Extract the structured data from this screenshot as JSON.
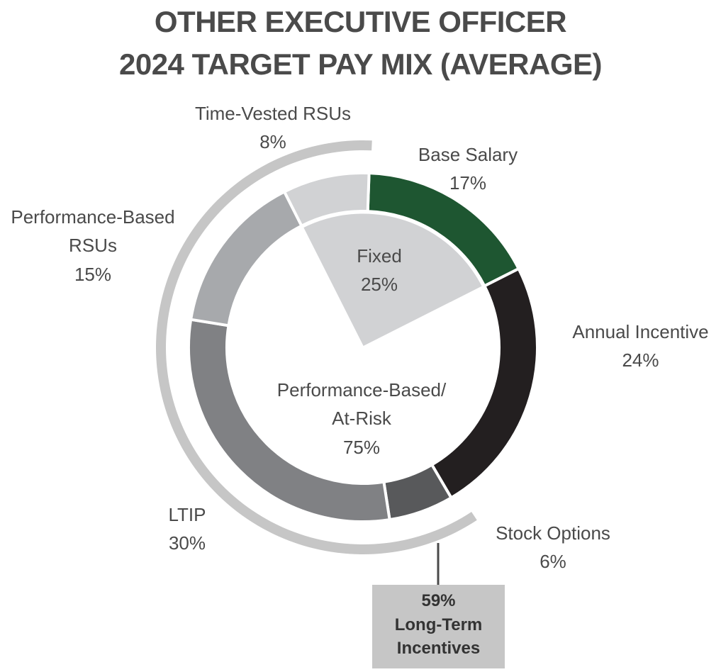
{
  "title_line1": "OTHER EXECUTIVE OFFICER",
  "title_line2": "2024 TARGET PAY MIX (AVERAGE)",
  "chart_data": {
    "type": "pie",
    "subtype": "nested-donut",
    "outer_ring": [
      {
        "name": "Base Salary",
        "value": 17,
        "label": "17%",
        "color": "#1e5631"
      },
      {
        "name": "Annual Incentive",
        "value": 24,
        "label": "24%",
        "color": "#231f20"
      },
      {
        "name": "Stock Options",
        "value": 6,
        "label": "6%",
        "color": "#58595b"
      },
      {
        "name": "LTIP",
        "value": 30,
        "label": "30%",
        "color": "#808184"
      },
      {
        "name": "Performance-Based RSUs",
        "value": 15,
        "label": "15%",
        "color": "#a7a9ac"
      },
      {
        "name": "Time-Vested RSUs",
        "value": 8,
        "label": "8%",
        "color": "#d1d2d4"
      }
    ],
    "inner_pie": [
      {
        "name": "Fixed",
        "value": 25,
        "label": "25%",
        "color": "#d1d2d4"
      },
      {
        "name": "Performance-Based/At-Risk",
        "value": 75,
        "label": "75%",
        "color": "#ffffff"
      }
    ],
    "bracket": {
      "value": 59,
      "label": "59%",
      "text_line1": "Long-Term",
      "text_line2": "Incentives",
      "color": "#c6c6c6"
    }
  },
  "labels": {
    "time_vested": {
      "line1": "Time-Vested RSUs",
      "line2": "8%"
    },
    "base_salary": {
      "line1": "Base Salary",
      "line2": "17%"
    },
    "perf_rsus": {
      "line1": "Performance-Based",
      "line2": "RSUs",
      "line3": "15%"
    },
    "annual": {
      "line1": "Annual Incentive",
      "line2": "24%"
    },
    "ltip": {
      "line1": "LTIP",
      "line2": "30%"
    },
    "stock_options": {
      "line1": "Stock Options",
      "line2": "6%"
    },
    "fixed": {
      "line1": "Fixed",
      "line2": "25%"
    },
    "at_risk": {
      "line1": "Performance-Based/",
      "line2": "At-Risk",
      "line3": "75%"
    }
  }
}
